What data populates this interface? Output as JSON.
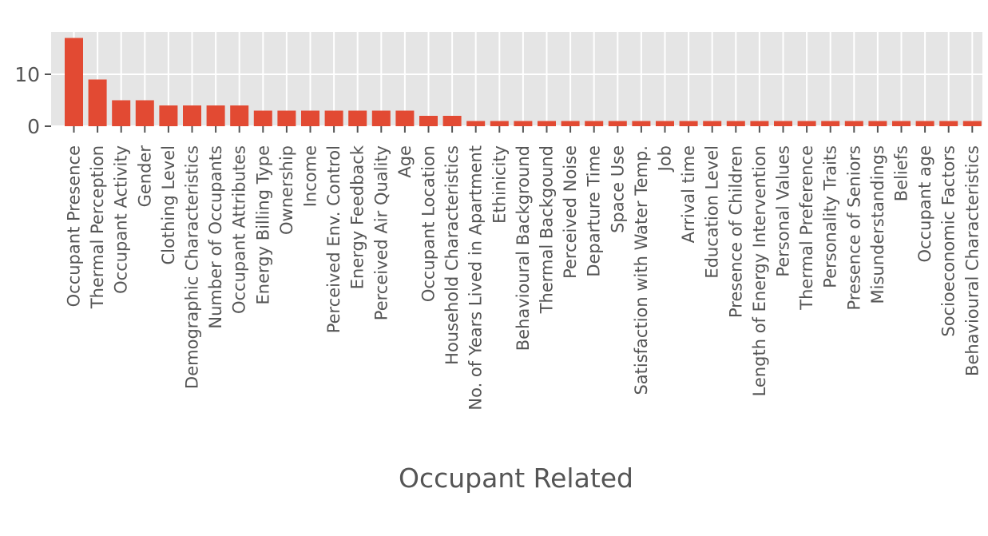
{
  "chart_data": {
    "type": "bar",
    "xlabel": "Occupant Related",
    "ylabel": "",
    "ylim": [
      0,
      18
    ],
    "yticks": [
      0,
      10
    ],
    "grid": true,
    "bar_color": "#E24A33",
    "background_color": "#E5E5E5",
    "grid_color": "#FFFFFF",
    "categories": [
      "Occupant Presence",
      "Thermal Perception",
      "Occupant Activity",
      "Gender",
      "Clothing Level",
      "Demographic Characteristics",
      "Number of Occupants",
      "Occupant Attributes",
      "Energy Billing Type",
      "Ownership",
      "Income",
      "Perceived Env. Control",
      "Energy Feedback",
      "Perceived Air Quality",
      "Age",
      "Occupant Location",
      "Household Characteristics",
      "No. of Years Lived in Apartment",
      "Ethinicity",
      "Behavioural Background",
      "Thermal Backgound",
      "Perceived Noise",
      "Departure Time",
      "Space Use",
      "Satisfaction with Water Temp.",
      "Job",
      "Arrival time",
      "Education Level",
      "Presence of Children",
      "Length of Energy Intervention",
      "Personal Values",
      "Thermal Preference",
      "Personality Traits",
      "Presence of Seniors",
      "Misunderstandings",
      "Beliefs",
      "Occupant age",
      "Socioeconomic Factors",
      "Behavioural Characteristics"
    ],
    "values": [
      17,
      9,
      5,
      5,
      4,
      4,
      4,
      4,
      3,
      3,
      3,
      3,
      3,
      3,
      3,
      2,
      2,
      1,
      1,
      1,
      1,
      1,
      1,
      1,
      1,
      1,
      1,
      1,
      1,
      1,
      1,
      1,
      1,
      1,
      1,
      1,
      1,
      1,
      1
    ]
  }
}
